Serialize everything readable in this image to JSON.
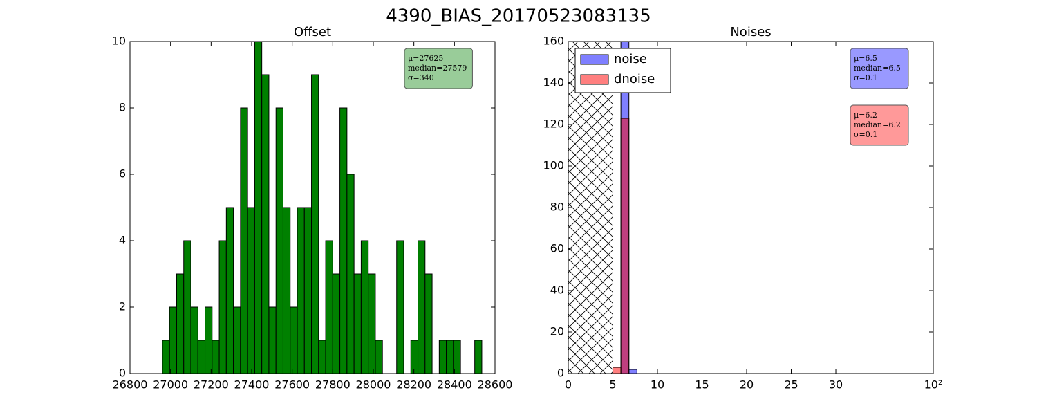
{
  "title": "4390_BIAS_20170523083135",
  "chart_data": [
    {
      "type": "histogram",
      "title": "Offset",
      "bins": [
        26960,
        26995,
        27030,
        27065,
        27100,
        27135,
        27170,
        27205,
        27240,
        27275,
        27310,
        27345,
        27380,
        27415,
        27450,
        27485,
        27520,
        27555,
        27590,
        27625,
        27660,
        27695,
        27730,
        27765,
        27800,
        27835,
        27870,
        27905,
        27940,
        27975,
        28010,
        28045,
        28080,
        28115,
        28150,
        28185,
        28220,
        28255,
        28290,
        28325,
        28360,
        28395,
        28430,
        28465,
        28500,
        28535
      ],
      "values": [
        1,
        2,
        3,
        4,
        2,
        1,
        2,
        1,
        4,
        5,
        2,
        8,
        5,
        10,
        9,
        2,
        8,
        5,
        2,
        5,
        5,
        9,
        1,
        4,
        3,
        8,
        6,
        3,
        4,
        3,
        1,
        0,
        0,
        4,
        0,
        1,
        4,
        3,
        0,
        1,
        1,
        1,
        0,
        0,
        1
      ],
      "color": "#008000",
      "xlim": [
        26800,
        28600
      ],
      "xticks": [
        26800,
        27000,
        27200,
        27400,
        27600,
        27800,
        28000,
        28200,
        28400,
        28600
      ],
      "ylim": [
        0,
        10
      ],
      "yticks": [
        0,
        2,
        4,
        6,
        8,
        10
      ],
      "annotations": [
        {
          "lines": [
            "μ=27625",
            "median=27579",
            "σ=340"
          ],
          "color": "#99cc99"
        }
      ]
    },
    {
      "type": "histogram",
      "title": "Noises",
      "bins": [
        5.0,
        5.9,
        6.8,
        7.7
      ],
      "series": [
        {
          "name": "noise",
          "color": "#0000ff",
          "alpha": 0.5,
          "values": [
            0,
            165,
            2
          ]
        },
        {
          "name": "dnoise",
          "color": "#ff0000",
          "alpha": 0.5,
          "values": [
            3,
            123,
            0
          ]
        }
      ],
      "shaded_region": [
        0,
        5
      ],
      "xscale": "symlog",
      "linthresh": 30,
      "xlim": [
        0,
        100
      ],
      "xticks": [
        0,
        5,
        10,
        15,
        20,
        25,
        30,
        {
          "value": 100,
          "label": "10²"
        }
      ],
      "ylim": [
        0,
        160
      ],
      "yticks": [
        0,
        20,
        40,
        60,
        80,
        100,
        120,
        140,
        160
      ],
      "legend": "upper left",
      "annotations": [
        {
          "lines": [
            "μ=6.5",
            "median=6.5",
            "σ=0.1"
          ],
          "color": "#9999ff"
        },
        {
          "lines": [
            "μ=6.2",
            "median=6.2",
            "σ=0.1"
          ],
          "color": "#ff9999"
        }
      ]
    }
  ]
}
